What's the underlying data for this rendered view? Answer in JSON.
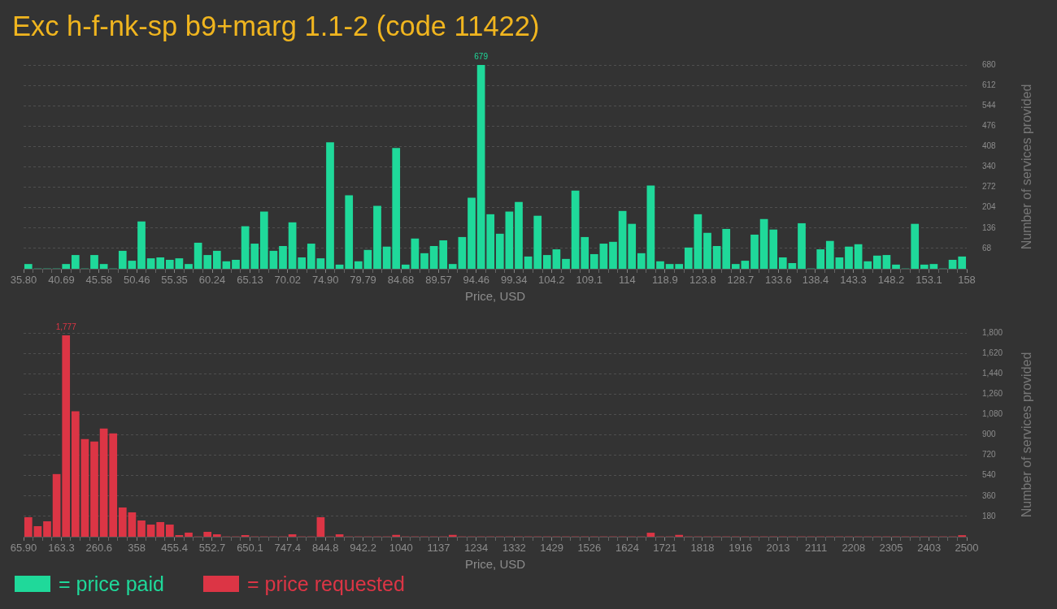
{
  "chart_data": [
    {
      "type": "histogram",
      "title": "Exc h-f-nk-sp b9+marg 1.1-2 (code 11422)",
      "xlabel": "Price, USD",
      "ylabel": "Number of services provided",
      "legend": "bottom",
      "grid": "y",
      "bins": [
        35.8,
        37.02,
        38.24,
        39.47,
        40.69,
        41.91,
        43.13,
        44.35,
        45.58,
        46.8,
        48.02,
        49.24,
        50.46,
        51.69,
        52.91,
        54.13,
        55.35,
        56.57,
        57.8,
        59.02,
        60.24,
        61.46,
        62.68,
        63.91,
        65.13,
        66.35,
        67.57,
        68.79,
        70.02,
        71.24,
        72.46,
        73.68,
        74.9,
        76.13,
        77.35,
        78.57,
        79.79,
        81.01,
        82.24,
        83.46,
        84.68,
        85.9,
        87.12,
        88.35,
        89.57,
        90.79,
        92.01,
        93.23,
        94.46,
        95.68,
        96.9,
        98.12,
        99.34,
        100.57,
        101.79,
        103.01,
        104.23,
        105.45,
        106.68,
        107.9,
        109.12,
        110.34,
        111.56,
        112.79,
        114.01,
        115.23,
        116.45,
        117.67,
        118.9,
        120.12,
        121.34,
        122.56,
        123.78,
        125.01,
        126.23,
        127.45,
        128.67,
        129.89,
        131.12,
        132.34,
        133.56,
        134.78,
        136,
        137.23,
        138.45,
        139.67,
        140.89,
        142.11,
        143.34,
        144.56,
        145.78,
        147,
        148.22,
        149.45,
        150.67,
        151.89,
        153.11,
        154.33,
        155.56,
        156.78,
        158
      ],
      "series": [
        {
          "name": "= price paid",
          "color": "#1fd99a",
          "values": [
            15,
            0,
            0,
            0,
            15,
            45,
            0,
            45,
            15,
            0,
            59,
            26,
            157,
            34,
            37,
            29,
            34,
            15,
            86,
            45,
            59,
            24,
            29,
            141,
            83,
            190,
            59,
            75,
            154,
            37,
            83,
            34,
            421,
            13,
            244,
            24,
            62,
            209,
            73,
            402,
            13,
            100,
            51,
            75,
            94,
            15,
            105,
            236,
            679,
            181,
            116,
            190,
            222,
            40,
            176,
            45,
            64,
            32,
            260,
            105,
            48,
            83,
            89,
            192,
            149,
            51,
            277,
            24,
            15,
            15,
            70,
            181,
            119,
            75,
            132,
            15,
            26,
            113,
            165,
            130,
            37,
            18,
            151,
            0,
            64,
            92,
            37,
            73,
            81,
            24,
            43,
            45,
            13,
            0,
            149,
            13,
            15,
            0,
            29,
            40
          ],
          "value_labels": [
            null,
            null,
            null,
            null,
            null,
            null,
            null,
            null,
            null,
            null,
            null,
            null,
            null,
            null,
            null,
            null,
            null,
            null,
            null,
            null,
            null,
            null,
            null,
            null,
            null,
            null,
            null,
            null,
            null,
            null,
            null,
            null,
            null,
            null,
            null,
            null,
            null,
            null,
            null,
            null,
            null,
            null,
            null,
            null,
            null,
            null,
            null,
            null,
            "679",
            null,
            null,
            null,
            null,
            null,
            null,
            null,
            null,
            null,
            null,
            null,
            null,
            null,
            null,
            null,
            null,
            null,
            null,
            null,
            null,
            null,
            null,
            null,
            null,
            null,
            null,
            null,
            null,
            null,
            null,
            null,
            null,
            null,
            null,
            null,
            null,
            null,
            null,
            null,
            null,
            null,
            null,
            null,
            null,
            null,
            null,
            null,
            null,
            null,
            null,
            null
          ]
        }
      ],
      "xlim": [
        35.8,
        158
      ],
      "xticks": [
        {
          "value": 35.8,
          "label": "35.80"
        },
        {
          "value": 37.02,
          "label": null
        },
        {
          "value": 38.24,
          "label": null
        },
        {
          "value": 39.47,
          "label": null
        },
        40.69,
        {
          "value": 41.91,
          "label": null
        },
        {
          "value": 43.13,
          "label": null
        },
        {
          "value": 44.35,
          "label": null
        },
        45.58,
        {
          "value": 46.8,
          "label": null
        },
        {
          "value": 48.02,
          "label": null
        },
        {
          "value": 49.24,
          "label": null
        },
        50.46,
        {
          "value": 51.69,
          "label": null
        },
        {
          "value": 52.91,
          "label": null
        },
        {
          "value": 54.13,
          "label": null
        },
        55.35,
        {
          "value": 56.57,
          "label": null
        },
        {
          "value": 57.8,
          "label": null
        },
        {
          "value": 59.02,
          "label": null
        },
        60.24,
        {
          "value": 61.46,
          "label": null
        },
        {
          "value": 62.68,
          "label": null
        },
        {
          "value": 63.91,
          "label": null
        },
        65.13,
        {
          "value": 66.35,
          "label": null
        },
        {
          "value": 67.57,
          "label": null
        },
        {
          "value": 68.79,
          "label": null
        },
        70.02,
        {
          "value": 71.24,
          "label": null
        },
        {
          "value": 72.46,
          "label": null
        },
        {
          "value": 73.68,
          "label": null
        },
        {
          "value": 74.9,
          "label": "74.90"
        },
        {
          "value": 76.13,
          "label": null
        },
        {
          "value": 77.35,
          "label": null
        },
        {
          "value": 78.57,
          "label": null
        },
        79.79,
        {
          "value": 81.01,
          "label": null
        },
        {
          "value": 82.24,
          "label": null
        },
        {
          "value": 83.46,
          "label": null
        },
        84.68,
        {
          "value": 85.9,
          "label": null
        },
        {
          "value": 87.12,
          "label": null
        },
        {
          "value": 88.35,
          "label": null
        },
        89.57,
        {
          "value": 90.79,
          "label": null
        },
        {
          "value": 92.01,
          "label": null
        },
        {
          "value": 93.23,
          "label": null
        },
        94.46,
        {
          "value": 95.68,
          "label": null
        },
        {
          "value": 96.9,
          "label": null
        },
        {
          "value": 98.12,
          "label": null
        },
        99.34,
        {
          "value": 100.57,
          "label": null
        },
        {
          "value": 101.79,
          "label": null
        },
        {
          "value": 103.01,
          "label": null
        },
        104.2,
        {
          "value": 105.45,
          "label": null
        },
        {
          "value": 106.68,
          "label": null
        },
        {
          "value": 107.9,
          "label": null
        },
        109.1,
        {
          "value": 110.34,
          "label": null
        },
        {
          "value": 111.56,
          "label": null
        },
        {
          "value": 112.79,
          "label": null
        },
        114,
        {
          "value": 115.23,
          "label": null
        },
        {
          "value": 116.45,
          "label": null
        },
        {
          "value": 117.67,
          "label": null
        },
        118.9,
        {
          "value": 120.12,
          "label": null
        },
        {
          "value": 121.34,
          "label": null
        },
        {
          "value": 122.56,
          "label": null
        },
        123.8,
        {
          "value": 125.01,
          "label": null
        },
        {
          "value": 126.23,
          "label": null
        },
        {
          "value": 127.45,
          "label": null
        },
        128.7,
        {
          "value": 129.89,
          "label": null
        },
        {
          "value": 131.12,
          "label": null
        },
        {
          "value": 132.34,
          "label": null
        },
        133.6,
        {
          "value": 134.78,
          "label": null
        },
        {
          "value": 136,
          "label": null
        },
        {
          "value": 137.23,
          "label": null
        },
        138.4,
        {
          "value": 139.67,
          "label": null
        },
        {
          "value": 140.89,
          "label": null
        },
        {
          "value": 142.11,
          "label": null
        },
        143.3,
        {
          "value": 144.56,
          "label": null
        },
        {
          "value": 145.78,
          "label": null
        },
        {
          "value": 147,
          "label": null
        },
        148.2,
        {
          "value": 149.45,
          "label": null
        },
        {
          "value": 150.67,
          "label": null
        },
        {
          "value": 151.89,
          "label": null
        },
        153.1,
        {
          "value": 154.33,
          "label": null
        },
        {
          "value": 155.56,
          "label": null
        },
        {
          "value": 156.78,
          "label": null
        },
        158
      ],
      "ylim": [
        0,
        680
      ],
      "yticks": [
        68,
        136,
        204,
        272,
        340,
        408,
        476,
        544,
        612,
        680
      ]
    },
    {
      "type": "histogram",
      "xlabel": "Price, USD",
      "ylabel": "Number of services provided",
      "legend": "bottom",
      "grid": "y",
      "bins": [
        65.9,
        90.2,
        114.6,
        138.9,
        163.3,
        187.6,
        211.9,
        236.3,
        260.6,
        285,
        309.3,
        333.7,
        358,
        382.3,
        406.7,
        431,
        455.4,
        479.7,
        504,
        528.4,
        552.7,
        577.1,
        601.4,
        625.7,
        650.1,
        674.4,
        698.8,
        723.1,
        747.4,
        771.8,
        796.1,
        820.5,
        844.8,
        869.2,
        893.5,
        917.8,
        942.2,
        966.5,
        990.9,
        1015.2,
        1039.5,
        1063.9,
        1088.2,
        1112.6,
        1136.9,
        1161.2,
        1185.6,
        1209.9,
        1234.3,
        1258.6,
        1283,
        1307.3,
        1331.6,
        1356,
        1380.3,
        1404.7,
        1429,
        1453.3,
        1477.7,
        1502,
        1526.4,
        1550.7,
        1575,
        1599.4,
        1623.7,
        1648.1,
        1672.4,
        1696.7,
        1721.1,
        1745.4,
        1769.8,
        1794.1,
        1818.5,
        1842.8,
        1867.1,
        1891.5,
        1915.8,
        1940.2,
        1964.5,
        1988.8,
        2013.2,
        2037.5,
        2061.9,
        2086.2,
        2110.5,
        2134.9,
        2159.2,
        2183.6,
        2207.9,
        2232.2,
        2256.6,
        2280.9,
        2305.3,
        2329.6,
        2354,
        2378.3,
        2402.6,
        2427,
        2451.3,
        2475.7,
        2500
      ],
      "series": [
        {
          "name": "= price requested",
          "color": "#dc3545",
          "values": [
            170,
            91,
            134,
            551,
            1777,
            1105,
            860,
            839,
            954,
            911,
            256,
            213,
            141,
            105,
            127,
            105,
            12,
            34,
            0,
            41,
            19,
            0,
            0,
            12,
            0,
            0,
            0,
            0,
            19,
            0,
            0,
            170,
            0,
            19,
            0,
            0,
            0,
            0,
            0,
            14,
            0,
            0,
            0,
            0,
            0,
            14,
            0,
            0,
            0,
            0,
            0,
            0,
            0,
            0,
            0,
            0,
            0,
            0,
            0,
            0,
            0,
            0,
            0,
            0,
            0,
            0,
            33,
            0,
            0,
            14,
            0,
            0,
            0,
            0,
            0,
            0,
            0,
            0,
            0,
            0,
            0,
            0,
            0,
            0,
            0,
            0,
            0,
            0,
            0,
            0,
            0,
            0,
            0,
            0,
            0,
            0,
            0,
            0,
            0,
            11
          ],
          "value_labels": [
            null,
            null,
            null,
            null,
            "1,777",
            null,
            null,
            null,
            null,
            null,
            null,
            null,
            null,
            null,
            null,
            null,
            null,
            null,
            null,
            null,
            null,
            null,
            null,
            null,
            null,
            null,
            null,
            null,
            null,
            null,
            null,
            null,
            null,
            null,
            null,
            null,
            null,
            null,
            null,
            null,
            null,
            null,
            null,
            null,
            null,
            null,
            null,
            null,
            null,
            null,
            null,
            null,
            null,
            null,
            null,
            null,
            null,
            null,
            null,
            null,
            null,
            null,
            null,
            null,
            null,
            null,
            null,
            null,
            null,
            null,
            null,
            null,
            null,
            null,
            null,
            null,
            null,
            null,
            null,
            null,
            null,
            null,
            null,
            null,
            null,
            null,
            null,
            null,
            null,
            null,
            null,
            null,
            null,
            null,
            null,
            null,
            null,
            null,
            null,
            null
          ]
        }
      ],
      "xlim": [
        65.9,
        2500
      ],
      "xticks": [
        {
          "value": 65.9,
          "label": "65.90"
        },
        {
          "value": 90.2,
          "label": null
        },
        {
          "value": 114.6,
          "label": null
        },
        {
          "value": 138.9,
          "label": null
        },
        163.3,
        {
          "value": 187.6,
          "label": null
        },
        {
          "value": 211.9,
          "label": null
        },
        {
          "value": 236.3,
          "label": null
        },
        260.6,
        {
          "value": 285,
          "label": null
        },
        {
          "value": 309.3,
          "label": null
        },
        {
          "value": 333.7,
          "label": null
        },
        358,
        {
          "value": 382.3,
          "label": null
        },
        {
          "value": 406.7,
          "label": null
        },
        {
          "value": 431,
          "label": null
        },
        455.4,
        {
          "value": 479.7,
          "label": null
        },
        {
          "value": 504,
          "label": null
        },
        {
          "value": 528.4,
          "label": null
        },
        552.7,
        {
          "value": 577.1,
          "label": null
        },
        {
          "value": 601.4,
          "label": null
        },
        {
          "value": 625.7,
          "label": null
        },
        650.1,
        {
          "value": 674.4,
          "label": null
        },
        {
          "value": 698.8,
          "label": null
        },
        {
          "value": 723.1,
          "label": null
        },
        747.4,
        {
          "value": 771.8,
          "label": null
        },
        {
          "value": 796.1,
          "label": null
        },
        {
          "value": 820.5,
          "label": null
        },
        844.8,
        {
          "value": 869.2,
          "label": null
        },
        {
          "value": 893.5,
          "label": null
        },
        {
          "value": 917.8,
          "label": null
        },
        942.2,
        {
          "value": 966.5,
          "label": null
        },
        {
          "value": 990.9,
          "label": null
        },
        {
          "value": 1015.2,
          "label": null
        },
        1040,
        {
          "value": 1063.9,
          "label": null
        },
        {
          "value": 1088.2,
          "label": null
        },
        {
          "value": 1112.6,
          "label": null
        },
        1137,
        {
          "value": 1161.2,
          "label": null
        },
        {
          "value": 1185.6,
          "label": null
        },
        {
          "value": 1209.9,
          "label": null
        },
        1234,
        {
          "value": 1258.6,
          "label": null
        },
        {
          "value": 1283,
          "label": null
        },
        {
          "value": 1307.3,
          "label": null
        },
        1332,
        {
          "value": 1356,
          "label": null
        },
        {
          "value": 1380.3,
          "label": null
        },
        {
          "value": 1404.7,
          "label": null
        },
        1429,
        {
          "value": 1453.3,
          "label": null
        },
        {
          "value": 1477.7,
          "label": null
        },
        {
          "value": 1502,
          "label": null
        },
        1526,
        {
          "value": 1550.7,
          "label": null
        },
        {
          "value": 1575,
          "label": null
        },
        {
          "value": 1599.4,
          "label": null
        },
        1624,
        {
          "value": 1648.1,
          "label": null
        },
        {
          "value": 1672.4,
          "label": null
        },
        {
          "value": 1696.7,
          "label": null
        },
        1721,
        {
          "value": 1745.4,
          "label": null
        },
        {
          "value": 1769.8,
          "label": null
        },
        {
          "value": 1794.1,
          "label": null
        },
        1818,
        {
          "value": 1842.8,
          "label": null
        },
        {
          "value": 1867.1,
          "label": null
        },
        {
          "value": 1891.5,
          "label": null
        },
        1916,
        {
          "value": 1940.2,
          "label": null
        },
        {
          "value": 1964.5,
          "label": null
        },
        {
          "value": 1988.8,
          "label": null
        },
        2013,
        {
          "value": 2037.5,
          "label": null
        },
        {
          "value": 2061.9,
          "label": null
        },
        {
          "value": 2086.2,
          "label": null
        },
        2111,
        {
          "value": 2134.9,
          "label": null
        },
        {
          "value": 2159.2,
          "label": null
        },
        {
          "value": 2183.6,
          "label": null
        },
        2208,
        {
          "value": 2232.2,
          "label": null
        },
        {
          "value": 2256.6,
          "label": null
        },
        {
          "value": 2280.9,
          "label": null
        },
        2305,
        {
          "value": 2329.6,
          "label": null
        },
        {
          "value": 2354,
          "label": null
        },
        {
          "value": 2378.3,
          "label": null
        },
        2403,
        {
          "value": 2427,
          "label": null
        },
        {
          "value": 2451.3,
          "label": null
        },
        {
          "value": 2475.7,
          "label": null
        },
        2500
      ],
      "ylim": [
        0,
        1800
      ],
      "yticks": [
        180,
        360,
        540,
        720,
        900,
        {
          "value": 1080,
          "label": "1,080"
        },
        {
          "value": 1260,
          "label": "1,260"
        },
        {
          "value": 1440,
          "label": "1,440"
        },
        {
          "value": 1620,
          "label": "1,620"
        },
        {
          "value": 1800,
          "label": "1,800"
        }
      ]
    }
  ]
}
